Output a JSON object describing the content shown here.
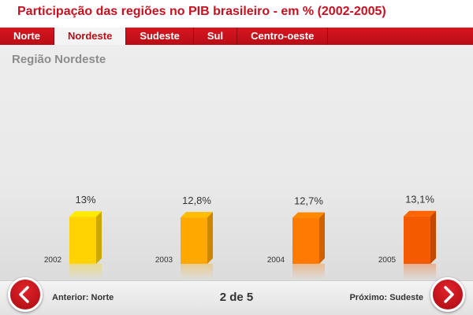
{
  "title": "Participação das regiões no PIB brasileiro - em % (2002-2005)",
  "tabs": [
    {
      "label": "Norte",
      "active": false
    },
    {
      "label": "Nordeste",
      "active": true
    },
    {
      "label": "Sudeste",
      "active": false
    },
    {
      "label": "Sul",
      "active": false
    },
    {
      "label": "Centro-oeste",
      "active": false
    }
  ],
  "region_title": "Região Nordeste",
  "chart_data": {
    "type": "bar",
    "categories": [
      "2002",
      "2003",
      "2004",
      "2005"
    ],
    "values": [
      13,
      12.8,
      12.7,
      13.1
    ],
    "value_labels": [
      "13%",
      "12,8%",
      "12,7%",
      "13,1%"
    ],
    "bar_colors": [
      "#ffd200",
      "#ffa800",
      "#ff7a00",
      "#f45a00"
    ],
    "grid": false,
    "legend": "none"
  },
  "footer": {
    "prev_label": "Anterior: Norte",
    "next_label": "Próximo: Sudeste",
    "page_indicator": "2 de 5"
  },
  "icons": {
    "prev": "chevron-left-icon",
    "next": "chevron-right-icon"
  }
}
